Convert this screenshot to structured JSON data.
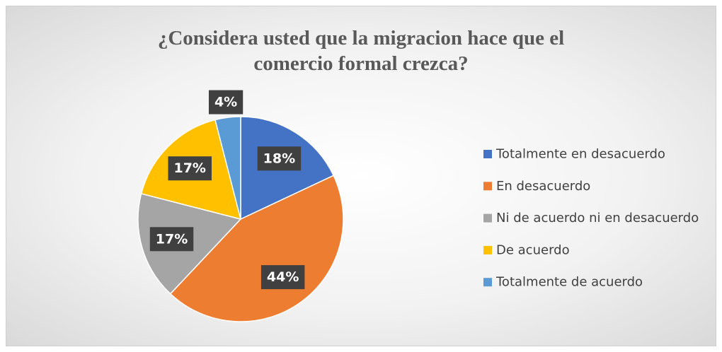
{
  "chart_data": {
    "type": "pie",
    "title": "¿Considera usted que la migracion hace que el comercio formal crezca?",
    "categories": [
      "Totalmente en desacuerdo",
      "En desacuerdo",
      "Ni de acuerdo ni en desacuerdo",
      "De acuerdo",
      "Totalmente de acuerdo"
    ],
    "values": [
      18,
      44,
      17,
      17,
      4
    ],
    "value_labels": [
      "18%",
      "44%",
      "17%",
      "17%",
      "4%"
    ],
    "colors": [
      "#4472c4",
      "#ed7d31",
      "#a5a5a5",
      "#ffc000",
      "#5b9bd5"
    ],
    "legend": "right"
  }
}
